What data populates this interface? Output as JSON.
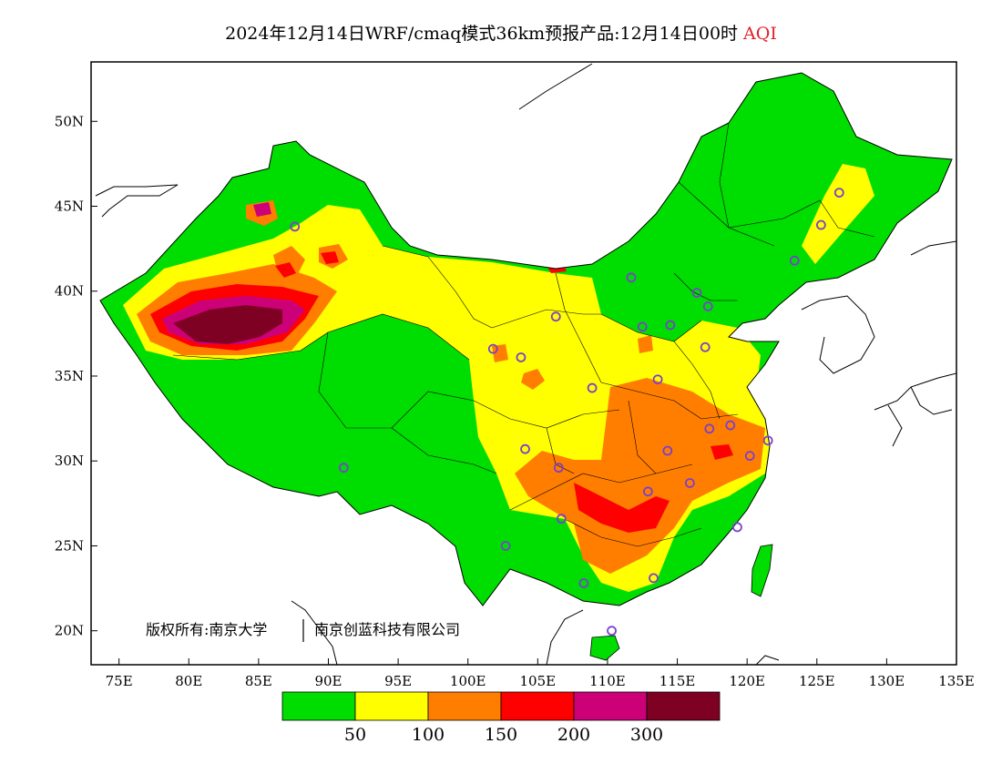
{
  "header": {
    "title_main": "2024年12月14日WRF/cmaq模式36km预报产品:12月14日00时",
    "title_var": "AQI"
  },
  "map": {
    "lon_labels": [
      "75E",
      "80E",
      "85E",
      "90E",
      "95E",
      "100E",
      "105E",
      "110E",
      "115E",
      "120E",
      "125E",
      "130E",
      "135E"
    ],
    "lat_labels": [
      "50N",
      "45N",
      "40N",
      "35N",
      "30N",
      "25N",
      "20N"
    ],
    "lon_range": [
      73,
      135
    ],
    "lat_range": [
      18,
      53.5
    ],
    "copyright_left": "版权所有:南京大学",
    "copyright_right": "南京创蓝科技有限公司"
  },
  "colorbar": {
    "colors": [
      "#00dd00",
      "#ffff00",
      "#ff7e00",
      "#ff0000",
      "#cc0077",
      "#7e0023"
    ],
    "labels": [
      "50",
      "100",
      "150",
      "200",
      "300"
    ]
  },
  "stations": [
    [
      87.6,
      43.8
    ],
    [
      91.1,
      29.6
    ],
    [
      101.8,
      36.6
    ],
    [
      103.8,
      36.1
    ],
    [
      106.3,
      38.5
    ],
    [
      108.9,
      34.3
    ],
    [
      104.1,
      30.7
    ],
    [
      106.5,
      29.6
    ],
    [
      106.7,
      26.6
    ],
    [
      102.7,
      25.0
    ],
    [
      108.3,
      22.8
    ],
    [
      110.3,
      20.0
    ],
    [
      113.3,
      23.1
    ],
    [
      112.9,
      28.2
    ],
    [
      114.3,
      30.6
    ],
    [
      113.6,
      34.8
    ],
    [
      112.5,
      37.9
    ],
    [
      114.5,
      38.0
    ],
    [
      116.4,
      39.9
    ],
    [
      117.2,
      39.1
    ],
    [
      117.0,
      36.7
    ],
    [
      117.3,
      31.9
    ],
    [
      118.8,
      32.1
    ],
    [
      120.2,
      30.3
    ],
    [
      121.5,
      31.2
    ],
    [
      115.9,
      28.7
    ],
    [
      119.3,
      26.1
    ],
    [
      111.7,
      40.8
    ],
    [
      123.4,
      41.8
    ],
    [
      125.3,
      43.9
    ],
    [
      126.6,
      45.8
    ]
  ]
}
